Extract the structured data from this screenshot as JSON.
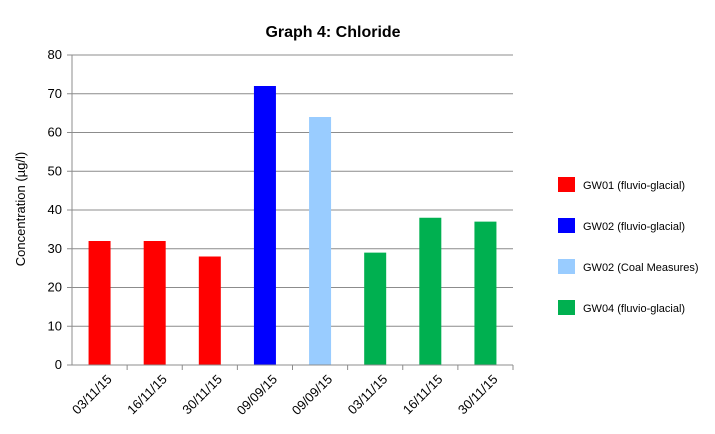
{
  "chart_data": {
    "type": "bar",
    "title": "Graph 4: Chloride",
    "xlabel": "",
    "ylabel": "Concentration (µg/l)",
    "ylim": [
      0,
      80
    ],
    "yticks": [
      0,
      10,
      20,
      30,
      40,
      50,
      60,
      70,
      80
    ],
    "grid": true,
    "legend_position": "right",
    "categories": [
      "03/11/15",
      "16/11/15",
      "30/11/15",
      "09/09/15",
      "09/09/15",
      "03/11/15",
      "16/11/15",
      "30/11/15"
    ],
    "values": [
      32,
      32,
      28,
      72,
      64,
      29,
      38,
      37
    ],
    "bar_series": [
      0,
      0,
      0,
      1,
      2,
      3,
      3,
      3
    ],
    "series": [
      {
        "name": "GW01 (fluvio-glacial)",
        "color": "#ff0000"
      },
      {
        "name": "GW02 (fluvio-glacial)",
        "color": "#0000ff"
      },
      {
        "name": "GW02 (Coal Measures)",
        "color": "#99ccff"
      },
      {
        "name": "GW04 (fluvio-glacial)",
        "color": "#00b050"
      }
    ]
  }
}
